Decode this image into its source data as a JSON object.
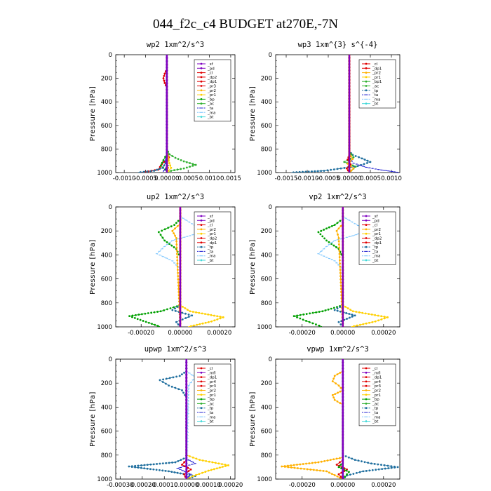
{
  "figure": {
    "title": "044_f2c_c4  BUDGET at270E,-7N",
    "ylabel": "Pressure [hPa]",
    "colors": {
      "sf": "#7e00c0",
      "pd": "#7e00c0",
      "mfl": "#7e00c0",
      "cl": "#e00000",
      "dp2": "#e00000",
      "dp1": "#e00000",
      "pr4": "#e00000",
      "pr3": "#e00000",
      "pr2": "#ffb000",
      "pr1": "#ffd000",
      "bp": "#00a000",
      "ac": "#30b030",
      "bp1": "#30b030",
      "tp": "#1e6e9e",
      "ta": "#2020d0",
      "ma": "#80c8ff",
      "bt": "#40d8d8"
    }
  },
  "chart_data": [
    {
      "type": "line",
      "title": "wp2  1xm^2/s^3",
      "ylabel": "Pressure [hPa]",
      "xlim": [
        -0.0012,
        0.0016
      ],
      "ylim": [
        1000,
        0
      ],
      "xticks": [
        -0.001,
        -0.0005,
        0.0,
        0.0005,
        0.001,
        0.0015
      ],
      "xtick_labels": [
        "-0.0010",
        "-0.0005",
        "0.00000",
        "0.0005",
        "0.0010",
        "0.0015"
      ],
      "yticks": [
        0,
        200,
        400,
        600,
        800,
        1000
      ],
      "ytick_labels": [
        "0",
        "200",
        "400",
        "600",
        "800",
        "1000"
      ],
      "legend_placement": "top-right",
      "legend": [
        "_sf",
        "_pd",
        "_cl",
        "_dp2",
        "_dp1",
        "_pr3",
        "_pr2",
        "_pr1",
        "_bp",
        "_ac",
        "_ta",
        "_ma",
        "_bt"
      ],
      "series": [
        {
          "key": "cl",
          "x": [
            0,
            0,
            -5e-05,
            -8e-05,
            -5e-05,
            0,
            0,
            5e-05,
            -0.00012,
            -0.0002,
            -0.0006
          ],
          "y": [
            0,
            120,
            160,
            200,
            240,
            280,
            820,
            870,
            930,
            975,
            1000
          ]
        },
        {
          "key": "ac",
          "x": [
            0,
            0,
            0,
            6e-05,
            0.0002,
            0.0004,
            0.00068,
            0.0004,
            0.0001,
            0.0
          ],
          "y": [
            0,
            700,
            800,
            845,
            875,
            905,
            935,
            965,
            985,
            1000
          ]
        },
        {
          "key": "bp",
          "x": [
            0,
            0,
            -8e-05,
            -0.00014,
            -4e-05,
            2e-05
          ],
          "y": [
            0,
            840,
            895,
            940,
            975,
            1000
          ]
        },
        {
          "key": "pr1",
          "x": [
            0,
            0,
            3e-05,
            6e-05,
            0.0001,
            4e-05,
            0
          ],
          "y": [
            0,
            820,
            870,
            920,
            960,
            985,
            1000
          ]
        },
        {
          "key": "pr2",
          "x": [
            0,
            0,
            4e-05,
            1e-05,
            3e-05,
            0
          ],
          "y": [
            0,
            840,
            880,
            920,
            960,
            1000
          ]
        },
        {
          "key": "tp",
          "x": [
            0,
            0,
            -3e-05,
            -0.0001,
            -0.0003,
            -0.0007
          ],
          "y": [
            0,
            860,
            920,
            960,
            985,
            1000
          ]
        },
        {
          "key": "ta",
          "x": [
            0,
            0,
            -4e-05,
            2e-05,
            -6e-05,
            -0.0001
          ],
          "y": [
            0,
            860,
            900,
            940,
            980,
            1000
          ]
        },
        {
          "key": "sf",
          "x": [
            0,
            0
          ],
          "y": [
            0,
            1000
          ]
        }
      ]
    },
    {
      "type": "line",
      "title": "wp3  1xm^{3} s^{-4}",
      "ylabel": "Pressure [hPa]",
      "xlim": [
        -0.00175,
        0.0012
      ],
      "ylim": [
        1000,
        0
      ],
      "xticks": [
        -0.0015,
        -0.001,
        -0.0005,
        0.0,
        0.0005,
        0.001
      ],
      "xtick_labels": [
        "-0.0015",
        "-0.0010",
        "-0.0005",
        "0.00000",
        "0.0005",
        "0.0010"
      ],
      "yticks": [
        0,
        200,
        400,
        600,
        800,
        1000
      ],
      "ytick_labels": [
        "0",
        "200",
        "400",
        "600",
        "800",
        "1000"
      ],
      "legend_placement": "top-right",
      "legend": [
        "_cl",
        "_dp1",
        "_pr2",
        "_pr1",
        "_bp1",
        "_ac",
        "_tp",
        "_ta",
        "_ma",
        "_bt"
      ],
      "series": [
        {
          "key": "tp",
          "x": [
            0,
            0,
            8e-05,
            0.0003,
            0.0005,
            0.0002,
            -0.0002,
            -0.0006,
            -0.0014
          ],
          "y": [
            0,
            820,
            850,
            880,
            910,
            945,
            965,
            985,
            1000
          ]
        },
        {
          "key": "ta",
          "x": [
            0,
            0,
            0.0001,
            0.0004,
            0.0007,
            0.001,
            0.0012
          ],
          "y": [
            0,
            880,
            920,
            955,
            975,
            990,
            1000
          ]
        },
        {
          "key": "ac",
          "x": [
            0,
            0,
            0.0001,
            -0.00012,
            0.00015,
            0.0
          ],
          "y": [
            0,
            820,
            870,
            910,
            950,
            1000
          ]
        },
        {
          "key": "pr2",
          "x": [
            0,
            0,
            8e-05,
            -4e-05,
            0.0001,
            0
          ],
          "y": [
            0,
            840,
            885,
            925,
            965,
            1000
          ]
        },
        {
          "key": "cl",
          "x": [
            0,
            0,
            -4e-05,
            3e-05,
            -6e-05,
            0
          ],
          "y": [
            0,
            850,
            890,
            930,
            965,
            1000
          ]
        },
        {
          "key": "dp1",
          "x": [
            0,
            0
          ],
          "y": [
            0,
            1000
          ]
        }
      ]
    },
    {
      "type": "line",
      "title": "up2  1xm^2/s^3",
      "ylabel": "Pressure [hPa]",
      "xlim": [
        -0.00033,
        0.00028
      ],
      "ylim": [
        1000,
        0
      ],
      "xticks": [
        -0.0002,
        0.0,
        0.0002
      ],
      "xtick_labels": [
        "-0.00020",
        "0.00000",
        "0.00020"
      ],
      "yticks": [
        0,
        200,
        400,
        600,
        800,
        1000
      ],
      "ytick_labels": [
        "0",
        "200",
        "400",
        "600",
        "800",
        "1000"
      ],
      "legend_placement": "top-right",
      "legend": [
        "_sf",
        "_pd",
        "_cl",
        "_pr2",
        "_pr1",
        "_dp2",
        "_dp1",
        "_tp",
        "_ta",
        "_ma",
        "_bt"
      ],
      "series": [
        {
          "key": "bp",
          "x": [
            0,
            0,
            -3e-05,
            -0.00011,
            -8e-05,
            -2e-05,
            0,
            0,
            -0.0001,
            -0.00026,
            -0.00019,
            -0.0001
          ],
          "y": [
            0,
            100,
            150,
            210,
            280,
            350,
            420,
            820,
            870,
            910,
            950,
            1000
          ]
        },
        {
          "key": "ma",
          "x": [
            0,
            0,
            6e-05,
            0.00012,
            5e-05,
            -4e-05,
            -8e-05,
            -0.00012,
            -4e-05,
            0,
            0
          ],
          "y": [
            0,
            80,
            140,
            200,
            240,
            280,
            330,
            390,
            450,
            520,
            1000
          ]
        },
        {
          "key": "tp",
          "x": [
            0,
            0,
            -4e-05,
            6e-05,
            -2e-05,
            0
          ],
          "y": [
            0,
            820,
            860,
            905,
            960,
            1000
          ]
        },
        {
          "key": "pr1",
          "x": [
            0,
            0,
            5e-05,
            0.00022,
            0.00016,
            4e-05
          ],
          "y": [
            0,
            820,
            870,
            920,
            955,
            1000
          ]
        },
        {
          "key": "pr2",
          "x": [
            0,
            0,
            -4e-05,
            -2e-05,
            0
          ],
          "y": [
            0,
            140,
            200,
            260,
            1000
          ]
        },
        {
          "key": "cl",
          "x": [
            0,
            0
          ],
          "y": [
            0,
            1000
          ]
        }
      ]
    },
    {
      "type": "line",
      "title": "vp2  1xm^2/s^3",
      "ylabel": "Pressure [hPa]",
      "xlim": [
        -0.00033,
        0.00028
      ],
      "ylim": [
        1000,
        0
      ],
      "xticks": [
        -0.0002,
        0.0,
        0.0002
      ],
      "xtick_labels": [
        "-0.00020",
        "0.00000",
        "0.00020"
      ],
      "yticks": [
        0,
        200,
        400,
        600,
        800,
        1000
      ],
      "ytick_labels": [
        "0",
        "200",
        "400",
        "600",
        "800",
        "1000"
      ],
      "legend_placement": "top-right",
      "legend": [
        "_sf",
        "_pd",
        "_cl",
        "_pr2",
        "_pr1",
        "_dp2",
        "_dp1",
        "_tp",
        "_ta",
        "_ma",
        "_bt"
      ],
      "series": [
        {
          "key": "bp",
          "x": [
            0,
            0,
            -4e-05,
            -0.00012,
            -8e-05,
            -2e-05,
            0,
            0,
            -0.0001,
            -0.00024,
            -0.00018,
            -0.0001
          ],
          "y": [
            0,
            100,
            150,
            210,
            280,
            350,
            420,
            820,
            870,
            910,
            950,
            1000
          ]
        },
        {
          "key": "ma",
          "x": [
            0,
            0,
            6e-05,
            0.00012,
            5e-05,
            -4e-05,
            -8e-05,
            -0.00012,
            -4e-05,
            0,
            0
          ],
          "y": [
            0,
            80,
            140,
            200,
            240,
            280,
            330,
            390,
            450,
            520,
            1000
          ]
        },
        {
          "key": "tp",
          "x": [
            0,
            0,
            -4e-05,
            6e-05,
            -2e-05,
            0
          ],
          "y": [
            0,
            820,
            860,
            905,
            960,
            1000
          ]
        },
        {
          "key": "pr1",
          "x": [
            0,
            0,
            5e-05,
            0.00022,
            0.00016,
            4e-05
          ],
          "y": [
            0,
            820,
            870,
            920,
            955,
            1000
          ]
        },
        {
          "key": "pr2",
          "x": [
            0,
            0,
            -3e-05,
            -2e-05,
            0
          ],
          "y": [
            0,
            140,
            200,
            260,
            1000
          ]
        },
        {
          "key": "cl",
          "x": [
            0,
            0
          ],
          "y": [
            0,
            1000
          ]
        }
      ]
    },
    {
      "type": "line",
      "title": "upwp  1xm^2/s^3",
      "ylabel": "Pressure [hPa]",
      "xlim": [
        -0.00032,
        0.00022
      ],
      "ylim": [
        1000,
        0
      ],
      "xticks": [
        -0.0003,
        -0.0002,
        -0.0001,
        0.0,
        0.0001,
        0.0002
      ],
      "xtick_labels": [
        "-0.00030",
        "-0.00020",
        "-0.00010",
        "0.00000",
        "0.00010",
        "0.00020"
      ],
      "yticks": [
        0,
        200,
        400,
        600,
        800,
        1000
      ],
      "ytick_labels": [
        "0",
        "200",
        "400",
        "600",
        "800",
        "1000"
      ],
      "legend_placement": "top-right",
      "legend": [
        "_cl",
        "_mfl",
        "_dp1",
        "_pr4",
        "_pr3",
        "_pr2",
        "_pr1",
        "_bp",
        "_ac",
        "_tp",
        "_ta",
        "_ma",
        "_bt"
      ],
      "series": [
        {
          "key": "tp",
          "x": [
            0,
            0,
            -3e-05,
            -0.00012,
            -8e-05,
            -2e-05,
            0,
            0,
            -5e-05,
            -0.00026,
            -8e-05,
            4e-05,
            0
          ],
          "y": [
            0,
            100,
            140,
            175,
            220,
            260,
            320,
            820,
            860,
            895,
            935,
            975,
            1000
          ]
        },
        {
          "key": "pr1",
          "x": [
            0,
            0,
            6e-05,
            0.00019,
            0.0001,
            3e-05,
            0
          ],
          "y": [
            0,
            800,
            840,
            885,
            930,
            975,
            1000
          ]
        },
        {
          "key": "ta",
          "x": [
            0,
            0,
            4e-05,
            -4e-05,
            2e-05,
            0
          ],
          "y": [
            0,
            830,
            870,
            910,
            960,
            1000
          ]
        },
        {
          "key": "ma",
          "x": [
            0,
            0,
            4e-05,
            1e-05,
            0
          ],
          "y": [
            0,
            100,
            150,
            220,
            1000
          ]
        },
        {
          "key": "cl",
          "x": [
            0,
            0,
            -2e-05,
            2e-05,
            -1e-05,
            0
          ],
          "y": [
            0,
            840,
            880,
            920,
            960,
            1000
          ]
        },
        {
          "key": "mfl",
          "x": [
            0,
            0
          ],
          "y": [
            0,
            1000
          ]
        }
      ]
    },
    {
      "type": "line",
      "title": "vpwp  1xm^2/s^3",
      "ylabel": "Pressure [hPa]",
      "xlim": [
        -0.00033,
        0.00028
      ],
      "ylim": [
        1000,
        0
      ],
      "xticks": [
        -0.0002,
        0.0,
        0.0002
      ],
      "xtick_labels": [
        "-0.00020",
        "0.00000",
        "0.00020"
      ],
      "yticks": [
        0,
        200,
        400,
        600,
        800,
        1000
      ],
      "ytick_labels": [
        "0",
        "200",
        "400",
        "600",
        "800",
        "1000"
      ],
      "legend_placement": "top-right",
      "legend": [
        "_cl",
        "_mfl",
        "_dp1",
        "_pr4",
        "_pr3",
        "_pr2",
        "_pr1",
        "_bp",
        "_ac",
        "_tp",
        "_ta",
        "_ma",
        "_bt"
      ],
      "series": [
        {
          "key": "tp",
          "x": [
            0,
            0,
            6e-05,
            0.00014,
            0.00027,
            0.0001,
            2e-05,
            0
          ],
          "y": [
            0,
            800,
            840,
            870,
            900,
            935,
            970,
            1000
          ]
        },
        {
          "key": "pr2",
          "x": [
            0,
            0,
            -4e-05,
            -5e-05,
            -2e-05,
            0,
            -5e-05,
            -4e-05,
            0,
            0,
            -0.00012,
            -0.0003,
            -8e-05,
            0
          ],
          "y": [
            0,
            100,
            140,
            185,
            220,
            260,
            300,
            340,
            380,
            820,
            860,
            895,
            935,
            1000
          ]
        },
        {
          "key": "cl",
          "x": [
            0,
            0,
            -3e-05,
            2e-05,
            -2e-05,
            0
          ],
          "y": [
            0,
            840,
            880,
            920,
            960,
            1000
          ]
        },
        {
          "key": "bp",
          "x": [
            0,
            0,
            -2e-05,
            3e-05,
            0
          ],
          "y": [
            0,
            860,
            900,
            940,
            1000
          ]
        },
        {
          "key": "mfl",
          "x": [
            0,
            0
          ],
          "y": [
            0,
            1000
          ]
        }
      ]
    }
  ]
}
